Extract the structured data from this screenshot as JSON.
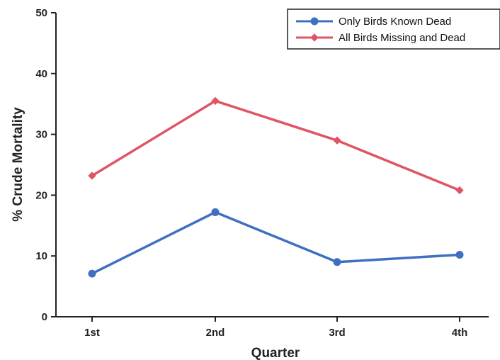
{
  "chart_data": {
    "type": "line",
    "categories": [
      "1st",
      "2nd",
      "3rd",
      "4th"
    ],
    "series": [
      {
        "name": "Only Birds Known Dead",
        "values": [
          7.1,
          17.2,
          9.0,
          10.2
        ],
        "color": "#3f6fc1",
        "marker": "circle"
      },
      {
        "name": "All Birds Missing and Dead",
        "values": [
          23.2,
          35.5,
          29.0,
          20.8
        ],
        "color": "#e05565",
        "marker": "diamond"
      }
    ],
    "xlabel": "Quarter",
    "ylabel": "% Crude Mortality",
    "ylim": [
      0,
      50
    ],
    "yticks": [
      0,
      10,
      20,
      30,
      40,
      50
    ],
    "grid": false,
    "legend_position": "top-right"
  }
}
